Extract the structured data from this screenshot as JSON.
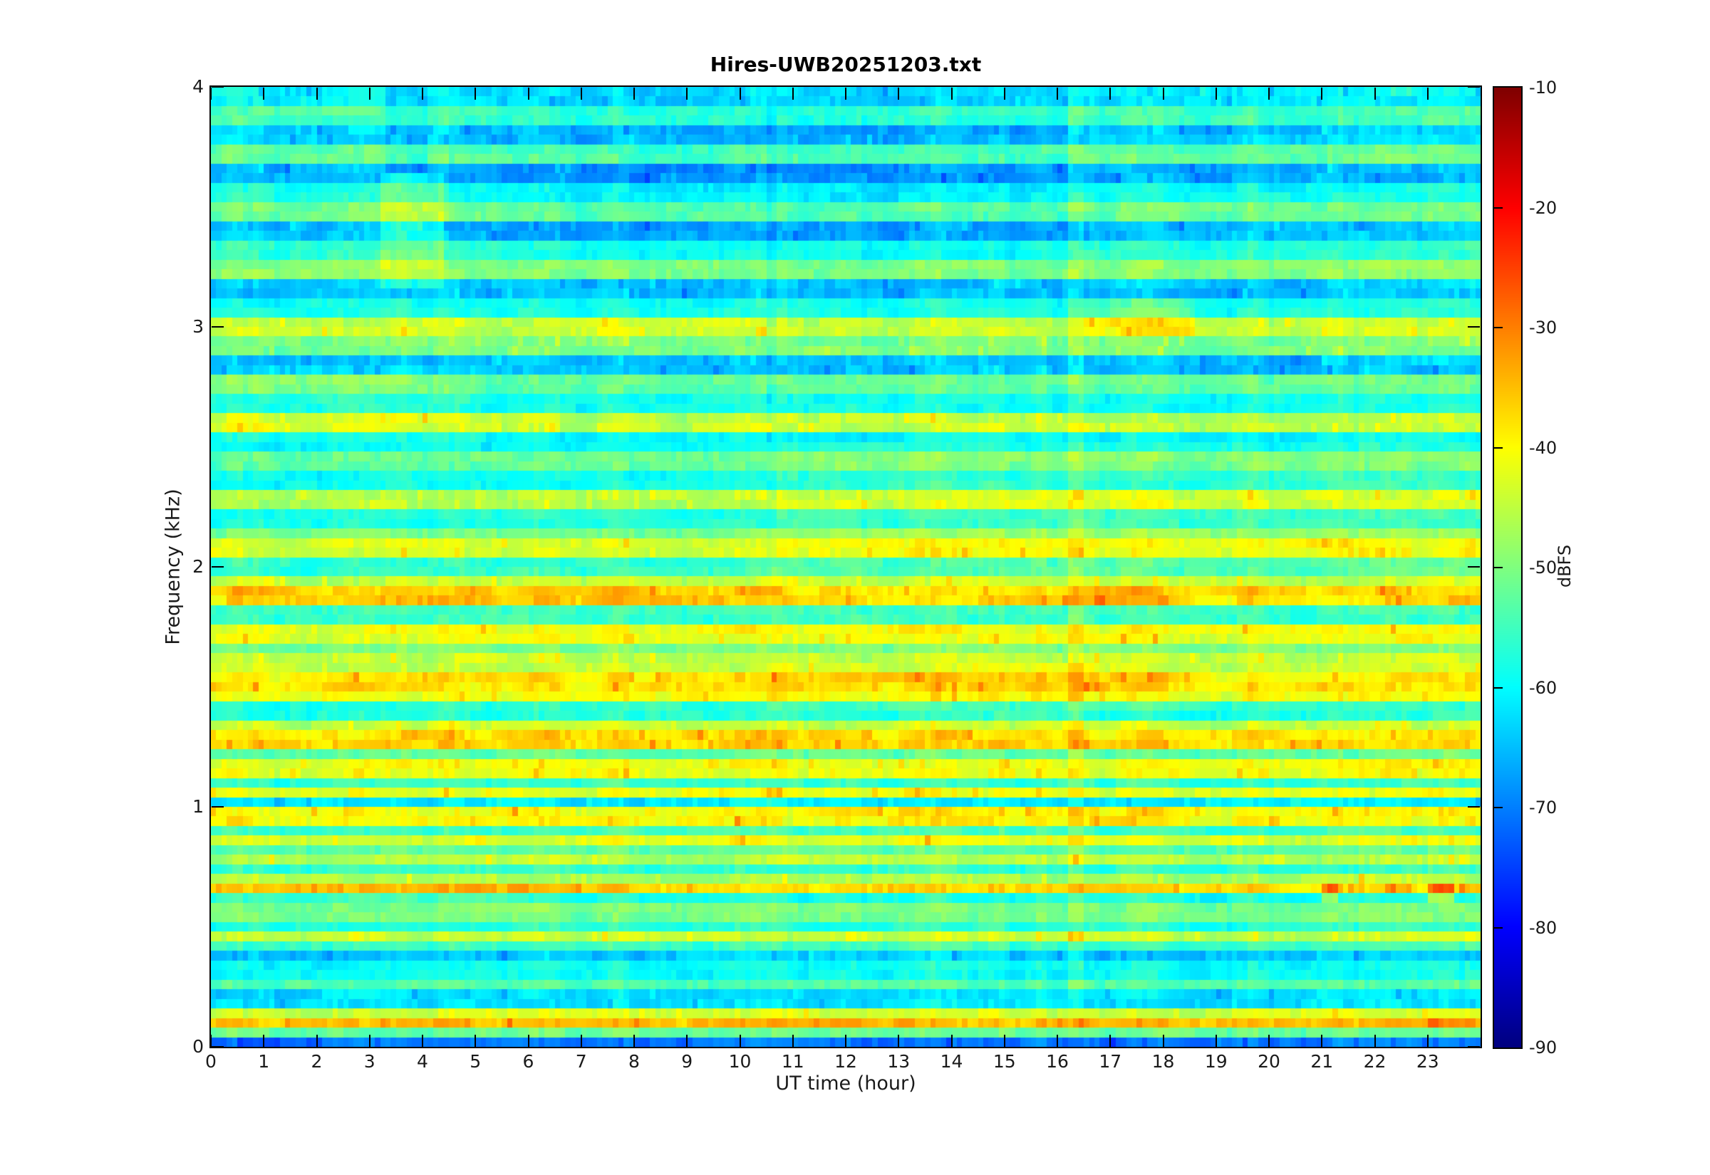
{
  "figure": {
    "title": "Hires-UWB20251203.txt"
  },
  "chart_data": {
    "type": "heatmap",
    "title": "Hires-UWB20251203.txt",
    "xlabel": "UT time (hour)",
    "ylabel": "Frequency (kHz)",
    "colorbar_label": "dBFS",
    "x_range": [
      0,
      24
    ],
    "x_ticks": [
      0,
      1,
      2,
      3,
      4,
      5,
      6,
      7,
      8,
      9,
      10,
      11,
      12,
      13,
      14,
      15,
      16,
      17,
      18,
      19,
      20,
      21,
      22,
      23
    ],
    "y_range": [
      0,
      4
    ],
    "y_ticks": [
      0,
      1,
      2,
      3,
      4
    ],
    "colorbar_range": [
      -90,
      -10
    ],
    "colorbar_ticks": [
      -10,
      -20,
      -30,
      -40,
      -50,
      -60,
      -70,
      -80,
      -90
    ],
    "colormap": "jet",
    "grid": false,
    "background_level_dbfs": -58.5,
    "time_bins": 240,
    "freq_bins": 100,
    "bands_comment": "horizontal emission bands: [f_low_kHz, f_high_kHz, level_dBFS]",
    "bands": [
      [
        0.0,
        0.04,
        -70
      ],
      [
        0.04,
        0.08,
        -51
      ],
      [
        0.08,
        0.13,
        -35
      ],
      [
        0.13,
        0.18,
        -43
      ],
      [
        0.18,
        0.24,
        -62
      ],
      [
        0.24,
        0.3,
        -53
      ],
      [
        0.3,
        0.35,
        -59
      ],
      [
        0.35,
        0.4,
        -64
      ],
      [
        0.4,
        0.44,
        -55
      ],
      [
        0.44,
        0.49,
        -44
      ],
      [
        0.49,
        0.54,
        -57
      ],
      [
        0.54,
        0.59,
        -50
      ],
      [
        0.59,
        0.63,
        -58
      ],
      [
        0.63,
        0.68,
        -37
      ],
      [
        0.68,
        0.72,
        -47
      ],
      [
        0.72,
        0.76,
        -56
      ],
      [
        0.76,
        0.81,
        -45
      ],
      [
        0.81,
        0.85,
        -52
      ],
      [
        0.85,
        0.9,
        -42
      ],
      [
        0.9,
        0.93,
        -55
      ],
      [
        0.93,
        0.99,
        -40
      ],
      [
        0.99,
        1.03,
        -62
      ],
      [
        1.03,
        1.09,
        -42
      ],
      [
        1.09,
        1.13,
        -55
      ],
      [
        1.13,
        1.19,
        -41
      ],
      [
        1.19,
        1.25,
        -52
      ],
      [
        1.25,
        1.31,
        -37
      ],
      [
        1.31,
        1.37,
        -45
      ],
      [
        1.37,
        1.43,
        -56
      ],
      [
        1.43,
        1.49,
        -41
      ],
      [
        1.49,
        1.57,
        -38
      ],
      [
        1.57,
        1.63,
        -44
      ],
      [
        1.63,
        1.69,
        -50
      ],
      [
        1.69,
        1.77,
        -41
      ],
      [
        1.77,
        1.83,
        -55
      ],
      [
        1.83,
        1.91,
        -37
      ],
      [
        1.91,
        1.97,
        -45
      ],
      [
        1.97,
        2.03,
        -56
      ],
      [
        2.03,
        2.11,
        -42
      ],
      [
        2.11,
        2.17,
        -50
      ],
      [
        2.17,
        2.25,
        -57
      ],
      [
        2.25,
        2.33,
        -45
      ],
      [
        2.33,
        2.41,
        -58
      ],
      [
        2.41,
        2.49,
        -52
      ],
      [
        2.49,
        2.57,
        -60
      ],
      [
        2.57,
        2.65,
        -45
      ],
      [
        2.65,
        2.73,
        -58
      ],
      [
        2.73,
        2.81,
        -52
      ],
      [
        2.81,
        2.89,
        -64
      ],
      [
        2.89,
        2.97,
        -50
      ],
      [
        2.97,
        3.05,
        -44
      ],
      [
        3.05,
        3.13,
        -58
      ],
      [
        3.13,
        3.21,
        -65
      ],
      [
        3.21,
        3.29,
        -50
      ],
      [
        3.29,
        3.37,
        -58
      ],
      [
        3.37,
        3.45,
        -66
      ],
      [
        3.45,
        3.53,
        -52
      ],
      [
        3.53,
        3.61,
        -59
      ],
      [
        3.61,
        3.69,
        -67
      ],
      [
        3.69,
        3.77,
        -53
      ],
      [
        3.77,
        3.85,
        -64
      ],
      [
        3.85,
        3.93,
        -55
      ],
      [
        3.93,
        4.0,
        -62
      ]
    ],
    "events_comment": "time-localized features: [t_start_h, t_end_h, f_low_kHz, f_high_kHz, delta_dB]",
    "events": [
      [
        3.2,
        4.45,
        3.18,
        3.66,
        5
      ],
      [
        3.3,
        4.15,
        3.66,
        4.0,
        -4
      ],
      [
        16.25,
        16.5,
        0.15,
        4.0,
        3
      ],
      [
        10.5,
        10.7,
        2.05,
        4.0,
        -3
      ],
      [
        16.5,
        18.6,
        2.95,
        3.14,
        5
      ],
      [
        21.05,
        21.3,
        0.6,
        0.68,
        8
      ],
      [
        23.0,
        23.5,
        0.6,
        0.68,
        9
      ],
      [
        0.0,
        6.0,
        0.6,
        0.68,
        2.5
      ],
      [
        10.5,
        24.0,
        1.98,
        2.52,
        2.5
      ],
      [
        0.0,
        5.0,
        2.54,
        2.86,
        2.5
      ],
      [
        10.5,
        19.0,
        1.4,
        1.62,
        2
      ],
      [
        0.3,
        11.0,
        1.83,
        1.91,
        2
      ],
      [
        6.5,
        10.5,
        0.84,
        0.9,
        2
      ],
      [
        11.0,
        18.0,
        0.93,
        0.99,
        2
      ],
      [
        0.0,
        4.5,
        3.18,
        4.0,
        2
      ],
      [
        5.5,
        16.2,
        3.3,
        4.0,
        -1.5
      ],
      [
        16.5,
        24.0,
        3.18,
        4.0,
        1
      ],
      [
        16.7,
        18.0,
        1.83,
        1.91,
        3
      ]
    ]
  }
}
